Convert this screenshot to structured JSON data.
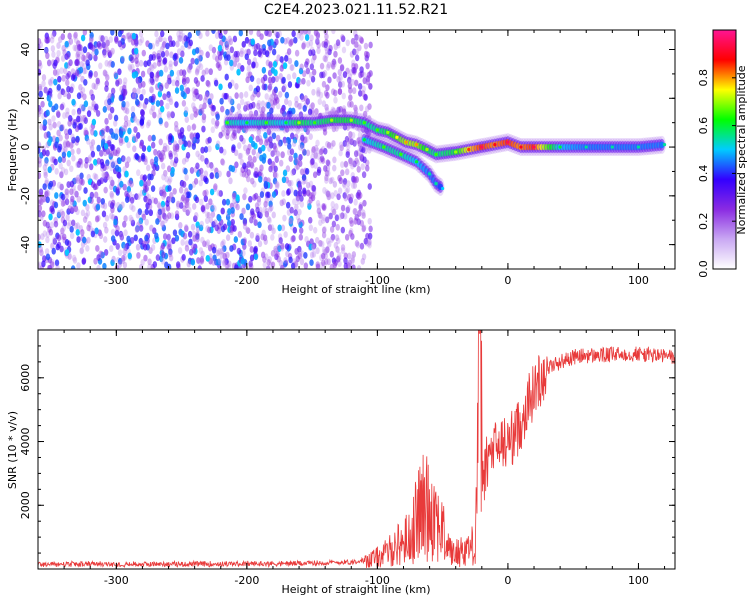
{
  "title": "C2E4.2023.021.11.52.R21",
  "chart_data": [
    {
      "type": "heatmap",
      "xlabel": "Height of straight line (km)",
      "ylabel": "Frequency (Hz)",
      "xlim": [
        -360,
        128
      ],
      "ylim": [
        -50,
        48
      ],
      "xticks": [
        -300,
        -200,
        -100,
        0,
        100
      ],
      "yticks": [
        -40,
        -20,
        0,
        20,
        40
      ],
      "colorbar": {
        "label": "Normalized spectral amplitude",
        "range": [
          0,
          1
        ],
        "ticks": [
          "0.0",
          "0.2",
          "0.4",
          "0.6",
          "0.8"
        ],
        "colors": [
          "#ffffff",
          "#c9a8f3",
          "#8a2be2",
          "#3300ff",
          "#00ccff",
          "#00ff00",
          "#ffff00",
          "#ff0000",
          "#ff1493"
        ]
      },
      "noise_region_x": [
        -360,
        -115
      ],
      "trace": [
        {
          "x": -215,
          "y": 10,
          "amp": 0.55
        },
        {
          "x": -200,
          "y": 10,
          "amp": 0.5
        },
        {
          "x": -185,
          "y": 10,
          "amp": 0.55
        },
        {
          "x": -170,
          "y": 10,
          "amp": 0.5
        },
        {
          "x": -160,
          "y": 10,
          "amp": 0.6
        },
        {
          "x": -148,
          "y": 10,
          "amp": 0.55
        },
        {
          "x": -135,
          "y": 11,
          "amp": 0.6
        },
        {
          "x": -120,
          "y": 11,
          "amp": 0.6
        },
        {
          "x": -110,
          "y": 10,
          "amp": 0.55
        },
        {
          "x": -100,
          "y": 7,
          "amp": 0.55
        },
        {
          "x": -92,
          "y": 6,
          "amp": 0.6
        },
        {
          "x": -85,
          "y": 4,
          "amp": 0.65
        },
        {
          "x": -78,
          "y": 2,
          "amp": 0.7
        },
        {
          "x": -70,
          "y": 1,
          "amp": 0.7
        },
        {
          "x": -62,
          "y": -1,
          "amp": 0.6
        },
        {
          "x": -55,
          "y": -3,
          "amp": 0.55
        },
        {
          "x": -40,
          "y": -2,
          "amp": 0.6
        },
        {
          "x": -30,
          "y": -1,
          "amp": 0.75
        },
        {
          "x": -20,
          "y": 0,
          "amp": 0.85
        },
        {
          "x": -10,
          "y": 1,
          "amp": 0.8
        },
        {
          "x": 0,
          "y": 2,
          "amp": 0.85
        },
        {
          "x": 10,
          "y": 0,
          "amp": 0.8
        },
        {
          "x": 20,
          "y": 0,
          "amp": 0.85
        },
        {
          "x": 40,
          "y": 0,
          "amp": 0.5
        },
        {
          "x": 60,
          "y": 0,
          "amp": 0.45
        },
        {
          "x": 80,
          "y": 0,
          "amp": 0.45
        },
        {
          "x": 100,
          "y": 0,
          "amp": 0.45
        },
        {
          "x": 120,
          "y": 1,
          "amp": 0.45
        }
      ],
      "lower_branch": [
        {
          "x": -110,
          "y": 3,
          "amp": 0.5
        },
        {
          "x": -95,
          "y": 0,
          "amp": 0.55
        },
        {
          "x": -82,
          "y": -3,
          "amp": 0.55
        },
        {
          "x": -70,
          "y": -6,
          "amp": 0.5
        },
        {
          "x": -60,
          "y": -11,
          "amp": 0.45
        },
        {
          "x": -55,
          "y": -15,
          "amp": 0.45
        },
        {
          "x": -50,
          "y": -17,
          "amp": 0.4
        }
      ]
    },
    {
      "type": "line",
      "xlabel": "Height of straight line (km)",
      "ylabel": "SNR (10 * v/v)",
      "xlim": [
        -360,
        128
      ],
      "ylim": [
        0,
        7500
      ],
      "xticks": [
        -300,
        -200,
        -100,
        0,
        100
      ],
      "yticks": [
        2000,
        4000,
        6000
      ],
      "color": "#e83a3a",
      "points": [
        {
          "x": -360,
          "y": 150
        },
        {
          "x": -300,
          "y": 150
        },
        {
          "x": -200,
          "y": 160
        },
        {
          "x": -150,
          "y": 180
        },
        {
          "x": -120,
          "y": 220
        },
        {
          "x": -105,
          "y": 300
        },
        {
          "x": -95,
          "y": 450
        },
        {
          "x": -85,
          "y": 750
        },
        {
          "x": -75,
          "y": 1000
        },
        {
          "x": -68,
          "y": 1800
        },
        {
          "x": -62,
          "y": 2000
        },
        {
          "x": -57,
          "y": 1900
        },
        {
          "x": -52,
          "y": 1400
        },
        {
          "x": -48,
          "y": 900
        },
        {
          "x": -42,
          "y": 450
        },
        {
          "x": -35,
          "y": 600
        },
        {
          "x": -28,
          "y": 700
        },
        {
          "x": -25,
          "y": 900
        },
        {
          "x": -22,
          "y": 6000
        },
        {
          "x": -19,
          "y": 2800
        },
        {
          "x": -15,
          "y": 3500
        },
        {
          "x": -10,
          "y": 3800
        },
        {
          "x": -5,
          "y": 3900
        },
        {
          "x": 0,
          "y": 4000
        },
        {
          "x": 5,
          "y": 4200
        },
        {
          "x": 10,
          "y": 4600
        },
        {
          "x": 15,
          "y": 5200
        },
        {
          "x": 20,
          "y": 5600
        },
        {
          "x": 25,
          "y": 6000
        },
        {
          "x": 30,
          "y": 6300
        },
        {
          "x": 40,
          "y": 6500
        },
        {
          "x": 50,
          "y": 6650
        },
        {
          "x": 60,
          "y": 6700
        },
        {
          "x": 70,
          "y": 6700
        },
        {
          "x": 80,
          "y": 6720
        },
        {
          "x": 90,
          "y": 6750
        },
        {
          "x": 100,
          "y": 6750
        },
        {
          "x": 110,
          "y": 6720
        },
        {
          "x": 120,
          "y": 6680
        },
        {
          "x": 128,
          "y": 6650
        }
      ]
    }
  ]
}
